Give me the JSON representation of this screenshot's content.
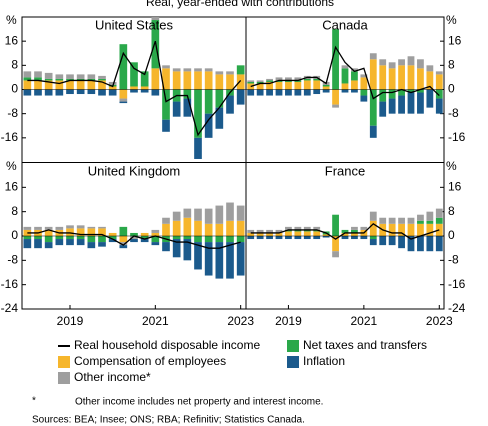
{
  "title": "Real, year-ended with contributions",
  "footnote_marker": "*",
  "footnote": "Other income includes net property and interest income.",
  "sources": "Sources: BEA; Insee; ONS; RBA; Refinitiv; Statistics Canada.",
  "chart_data": [
    {
      "type": "bar",
      "title": "United States",
      "ylabel": "%",
      "ylim": [
        -24,
        24
      ],
      "yticks": [
        -16,
        -8,
        0,
        8,
        16
      ],
      "series": [
        {
          "name": "Real household disposable income",
          "kind": "line",
          "color": "#000000",
          "values": [
            3,
            3,
            2.5,
            2,
            3,
            3,
            3,
            2.5,
            1,
            12,
            7,
            5,
            16,
            -4,
            -2,
            -2,
            -15,
            -10,
            -6,
            -1,
            3
          ]
        },
        {
          "name": "Compensation of employees",
          "kind": "bar",
          "color": "#f6b62c",
          "values": [
            3,
            3,
            3,
            3,
            3,
            3,
            3,
            3,
            1,
            -3,
            1,
            1,
            7,
            7,
            6,
            6,
            6,
            6,
            5,
            5,
            5
          ]
        },
        {
          "name": "Net taxes and transfers",
          "kind": "bar",
          "color": "#2aa84a",
          "values": [
            1,
            1,
            0.5,
            0.5,
            0.5,
            0.5,
            0.5,
            0.5,
            0.5,
            15,
            8,
            5,
            16,
            -10,
            -4,
            -3,
            -16,
            -8,
            -6,
            -2,
            3
          ]
        },
        {
          "name": "Other income*",
          "kind": "bar",
          "color": "#9e9e9e",
          "values": [
            2,
            2,
            2,
            1.5,
            1.5,
            1.5,
            1.5,
            1,
            1,
            -1,
            0,
            0,
            1,
            1,
            1,
            1,
            1,
            1,
            1,
            1,
            0
          ]
        },
        {
          "name": "Inflation",
          "kind": "bar",
          "color": "#1b5a8c",
          "values": [
            -2,
            -2,
            -2,
            -2,
            -1.5,
            -1.5,
            -1.5,
            -2,
            -2,
            -0.5,
            -1,
            -1,
            -2,
            -4,
            -5,
            -6,
            -7,
            -8,
            -7,
            -6,
            -5
          ]
        }
      ]
    },
    {
      "type": "bar",
      "title": "Canada",
      "ylabel": "%",
      "ylim": [
        -24,
        24
      ],
      "yticks": [
        -16,
        -8,
        0,
        8,
        16
      ],
      "series": [
        {
          "name": "Real household disposable income",
          "kind": "line",
          "color": "#000000",
          "values": [
            1,
            2,
            2,
            3,
            3,
            3,
            4,
            4,
            2,
            14,
            9,
            6,
            7,
            -3,
            -1,
            -1,
            0,
            -1,
            0,
            1,
            -2
          ]
        },
        {
          "name": "Compensation of employees",
          "kind": "bar",
          "color": "#f6b62c",
          "values": [
            2,
            2,
            2.5,
            2.5,
            2.5,
            2.5,
            3,
            3,
            1,
            -5,
            2,
            3,
            4,
            10,
            8,
            7,
            8,
            8,
            7,
            6,
            5
          ]
        },
        {
          "name": "Net taxes and transfers",
          "kind": "bar",
          "color": "#2aa84a",
          "values": [
            0.5,
            0.5,
            0.5,
            0.5,
            0.5,
            0.5,
            0.5,
            0.5,
            0.5,
            20,
            5,
            3,
            -2,
            -12,
            -4,
            -3,
            -2,
            -1,
            -1,
            0,
            -3
          ]
        },
        {
          "name": "Other income*",
          "kind": "bar",
          "color": "#9e9e9e",
          "values": [
            0.5,
            0.5,
            0.5,
            1,
            1,
            1,
            1,
            1,
            1,
            -1,
            1,
            1,
            1,
            2,
            2,
            2,
            2,
            3,
            3,
            2,
            1
          ]
        },
        {
          "name": "Inflation",
          "kind": "bar",
          "color": "#1b5a8c",
          "values": [
            -2,
            -2,
            -2,
            -2,
            -2,
            -2,
            -2,
            -1.5,
            -1,
            0,
            -1,
            -1,
            -2,
            -4,
            -5,
            -5,
            -6,
            -7,
            -7,
            -6,
            -5
          ]
        }
      ]
    },
    {
      "type": "bar",
      "title": "United Kingdom",
      "ylabel": "%",
      "ylim": [
        -24,
        24
      ],
      "yticks": [
        -24,
        -16,
        -8,
        0,
        8,
        16
      ],
      "categories": [
        null,
        null,
        null,
        null,
        "2019",
        null,
        null,
        null,
        null,
        null,
        null,
        null,
        "2021",
        null,
        null,
        null,
        null,
        null,
        null,
        null,
        "2023"
      ],
      "series": [
        {
          "name": "Real household disposable income",
          "kind": "line",
          "color": "#000000",
          "values": [
            1,
            1,
            2,
            1,
            1,
            0.5,
            0.5,
            0.5,
            -1,
            -3,
            0,
            -1,
            0,
            -1,
            -2,
            -2,
            -3,
            -4,
            -4,
            -3,
            -2
          ]
        },
        {
          "name": "Compensation of employees",
          "kind": "bar",
          "color": "#f6b62c",
          "values": [
            2,
            2,
            2,
            2,
            2.5,
            2.5,
            2.5,
            2.5,
            1,
            -2,
            0,
            1,
            1,
            4,
            5,
            6,
            5,
            4,
            4,
            5,
            5
          ]
        },
        {
          "name": "Net taxes and transfers",
          "kind": "bar",
          "color": "#2aa84a",
          "values": [
            -1,
            -1,
            -2,
            -1,
            -1,
            -1,
            -2,
            -2,
            -1,
            3,
            1,
            -1,
            -2,
            -2,
            -1,
            -1,
            -2,
            -2,
            -2,
            -2,
            -2
          ]
        },
        {
          "name": "Other income*",
          "kind": "bar",
          "color": "#9e9e9e",
          "values": [
            1,
            1,
            1,
            1,
            1,
            1,
            0.5,
            0.5,
            0,
            -1,
            -1,
            0,
            1,
            2,
            3,
            3,
            4,
            5,
            6,
            6,
            5
          ]
        },
        {
          "name": "Inflation",
          "kind": "bar",
          "color": "#1b5a8c",
          "values": [
            -3,
            -3,
            -2,
            -2,
            -2,
            -2,
            -2,
            -1.5,
            -1,
            -1,
            -1,
            -1,
            -1,
            -3,
            -6,
            -7,
            -9,
            -11,
            -12,
            -12,
            -11
          ]
        }
      ]
    },
    {
      "type": "bar",
      "title": "France",
      "ylabel": "%",
      "ylim": [
        -24,
        24
      ],
      "yticks": [
        -24,
        -16,
        -8,
        0,
        8,
        16
      ],
      "categories": [
        null,
        null,
        null,
        null,
        "2019",
        null,
        null,
        null,
        null,
        null,
        null,
        null,
        "2021",
        null,
        null,
        null,
        null,
        null,
        null,
        null,
        "2023"
      ],
      "series": [
        {
          "name": "Real household disposable income",
          "kind": "line",
          "color": "#000000",
          "values": [
            1,
            1,
            1,
            1,
            2,
            2,
            2,
            2,
            1,
            -1,
            1,
            1,
            1,
            4,
            2,
            1,
            1,
            -1,
            0,
            1,
            2
          ]
        },
        {
          "name": "Compensation of employees",
          "kind": "bar",
          "color": "#f6b62c",
          "values": [
            1,
            1,
            1,
            1,
            1.5,
            1.5,
            1.5,
            1.5,
            0.5,
            -5,
            1,
            1,
            2,
            5,
            4,
            4,
            4,
            4,
            4,
            4,
            4
          ]
        },
        {
          "name": "Net taxes and transfers",
          "kind": "bar",
          "color": "#2aa84a",
          "values": [
            0,
            0,
            0,
            0,
            0.5,
            0.5,
            0.5,
            0.5,
            1,
            7,
            1,
            1,
            0,
            -1,
            0,
            0,
            0,
            0,
            1,
            1,
            2
          ]
        },
        {
          "name": "Other income*",
          "kind": "bar",
          "color": "#9e9e9e",
          "values": [
            1,
            1,
            1,
            1,
            1,
            1,
            1,
            1,
            0,
            -2,
            0,
            1,
            1,
            3,
            2,
            2,
            2,
            2,
            2,
            3,
            3
          ]
        },
        {
          "name": "Inflation",
          "kind": "bar",
          "color": "#1b5a8c",
          "values": [
            -1,
            -1,
            -1,
            -1,
            -1,
            -1,
            -1,
            -1,
            -0.5,
            0,
            -1,
            -1,
            -1,
            -2,
            -3,
            -3,
            -4,
            -5,
            -5,
            -5,
            -5
          ]
        }
      ]
    }
  ]
}
